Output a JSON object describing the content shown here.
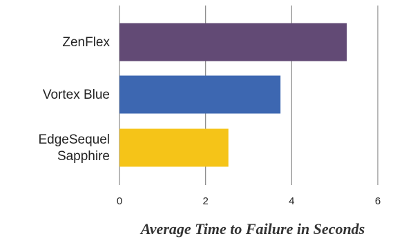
{
  "chart_data": {
    "type": "bar",
    "orientation": "horizontal",
    "categories": [
      "ZenFlex",
      "Vortex Blue",
      "EdgeSequel Sapphire"
    ],
    "category_lines": [
      [
        "ZenFlex"
      ],
      [
        "Vortex Blue"
      ],
      [
        "EdgeSequel",
        "Sapphire"
      ]
    ],
    "values": [
      5.28,
      3.74,
      2.53
    ],
    "colors": [
      "#624a75",
      "#3d67b1",
      "#f5c418"
    ],
    "title": "",
    "xlabel": "Average Time to Failure in Seconds",
    "ylabel": "",
    "xlim": [
      0,
      6
    ],
    "xticks": [
      0,
      2,
      4,
      6
    ],
    "xtick_labels": [
      "0",
      "2",
      "4",
      "6"
    ],
    "grid": "vertical",
    "legend": "none"
  }
}
